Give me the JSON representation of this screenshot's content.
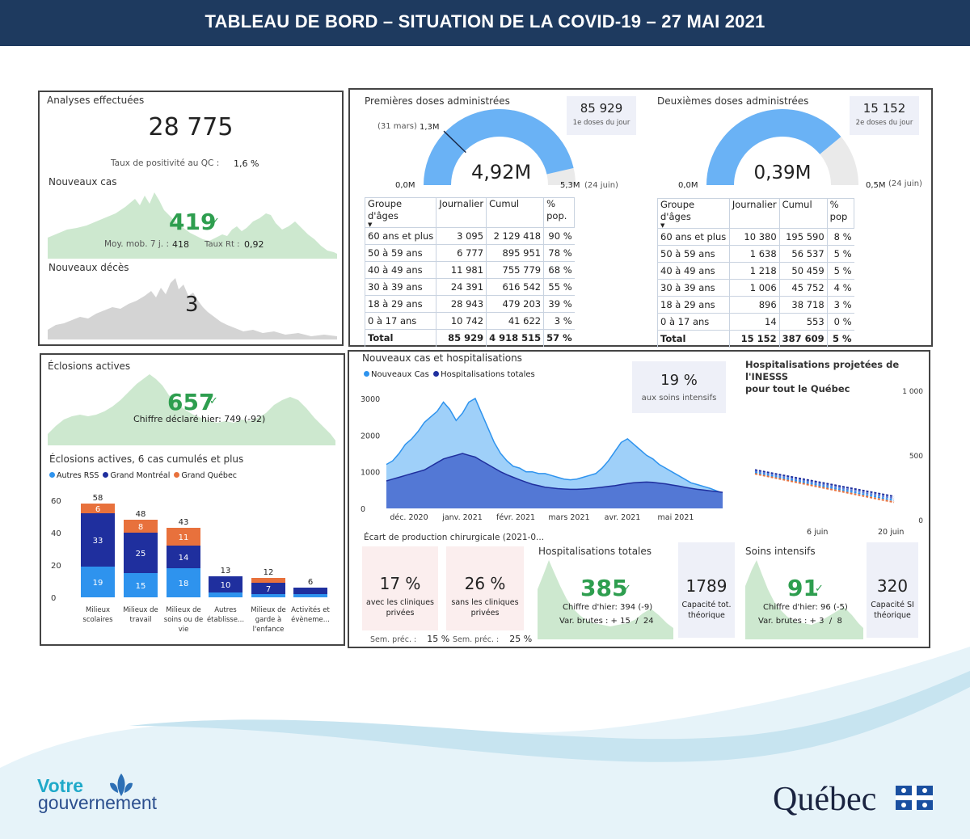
{
  "header": {
    "title": "TABLEAU DE BORD – SITUATION DE LA COVID-19 – 27 MAI 2021"
  },
  "colors": {
    "header_bg": "#1e3a5f",
    "green": "#2e9e4f",
    "light_green": "#cde8cf",
    "light_blue": "#6ab2f5",
    "dark_blue": "#1f2f9e",
    "orange": "#e8713c",
    "gray": "#cfcfcf"
  },
  "analyses": {
    "title": "Analyses effectuées",
    "value": "28 775",
    "positivity_label": "Taux de positivité au QC :",
    "positivity_value": "1,6 %"
  },
  "nouveaux_cas": {
    "title": "Nouveaux cas",
    "value": "419",
    "check": "✓",
    "moy_label": "Moy. mob. 7 j. :",
    "moy_value": "418",
    "rt_label": "Taux Rt :",
    "rt_value": "0,92"
  },
  "nouveaux_deces": {
    "title": "Nouveaux décès",
    "value": "3"
  },
  "premieres_doses": {
    "title": "Premières doses administrées",
    "value": "4,92M",
    "fill": 0.928,
    "min_label": "0,0M",
    "max_label": "5,3M",
    "max_note": "(24 juin)",
    "marker_label": "1,3M",
    "marker_note": "(31 mars)",
    "marker_fraction": 0.245,
    "kpi_value": "85 929",
    "kpi_label": "1e doses du jour",
    "table": {
      "headers": [
        "Groupe d'âges",
        "Journalier",
        "Cumul",
        "% pop."
      ],
      "rows": [
        [
          "60 ans et plus",
          "3 095",
          "2 129 418",
          "90 %"
        ],
        [
          "50 à 59 ans",
          "6 777",
          "895 951",
          "78 %"
        ],
        [
          "40 à 49 ans",
          "11 981",
          "755 779",
          "68 %"
        ],
        [
          "30 à 39 ans",
          "24 391",
          "616 542",
          "55 %"
        ],
        [
          "18 à 29 ans",
          "28 943",
          "479 203",
          "39 %"
        ],
        [
          "0 à 17 ans",
          "10 742",
          "41 622",
          "3 %"
        ]
      ],
      "total": [
        "Total",
        "85 929",
        "4 918 515",
        "57 %"
      ]
    }
  },
  "deuxiemes_doses": {
    "title": "Deuxièmes doses administrées",
    "value": "0,39M",
    "fill": 0.78,
    "min_label": "0,0M",
    "max_label": "0,5M",
    "max_note": "(24 juin)",
    "kpi_value": "15 152",
    "kpi_label": "2e doses du jour",
    "table": {
      "headers": [
        "Groupe d'âges",
        "Journalier",
        "Cumul",
        "% pop"
      ],
      "rows": [
        [
          "60 ans et plus",
          "10 380",
          "195 590",
          "8 %"
        ],
        [
          "50 à 59 ans",
          "1 638",
          "56 537",
          "5 %"
        ],
        [
          "40 à 49 ans",
          "1 218",
          "50 459",
          "5 %"
        ],
        [
          "30 à 39 ans",
          "1 006",
          "45 752",
          "4 %"
        ],
        [
          "18 à 29 ans",
          "896",
          "38 718",
          "3 %"
        ],
        [
          "0 à 17 ans",
          "14",
          "553",
          "0 %"
        ]
      ],
      "total": [
        "Total",
        "15 152",
        "387 609",
        "5 %"
      ]
    }
  },
  "eclosions": {
    "title": "Éclosions actives",
    "value": "657",
    "check": "✓",
    "note": "Chiffre déclaré hier: 749 (-92)"
  },
  "eclosions_chart": {
    "title": "Éclosions actives, 6 cas cumulés et plus",
    "legend": [
      "Autres RSS",
      "Grand Montréal",
      "Grand Québec"
    ],
    "chart_data": {
      "type": "bar",
      "stacked": true,
      "categories": [
        [
          "Milieux",
          "scolaires"
        ],
        [
          "Milieux de",
          "travail"
        ],
        [
          "Milieux de",
          "soins ou de",
          "vie"
        ],
        [
          "Autres",
          "établisse..."
        ],
        [
          "Milieux de",
          "garde à",
          "l'enfance"
        ],
        [
          "Activités et",
          "évèneme..."
        ]
      ],
      "series": [
        {
          "name": "Autres RSS",
          "values": [
            19,
            15,
            18,
            3,
            2,
            2
          ]
        },
        {
          "name": "Grand Montréal",
          "values": [
            33,
            25,
            14,
            10,
            7,
            4
          ]
        },
        {
          "name": "Grand Québec",
          "values": [
            6,
            8,
            11,
            0,
            3,
            0
          ]
        }
      ],
      "totals": [
        58,
        48,
        43,
        13,
        12,
        6
      ],
      "ylim": [
        0,
        60
      ],
      "yticks": [
        0,
        20,
        40,
        60
      ]
    }
  },
  "cas_hosp": {
    "title": "Nouveaux cas et hospitalisations",
    "legend": [
      "Nouveaux Cas",
      "Hospitalisations totales"
    ],
    "kpi_value": "19 %",
    "kpi_label": "aux soins intensifs",
    "chart_data": {
      "type": "area",
      "x_labels": [
        "déc. 2020",
        "janv. 2021",
        "févr. 2021",
        "mars 2021",
        "avr. 2021",
        "mai 2021"
      ],
      "yticks": [
        0,
        1000,
        2000,
        3000
      ],
      "ylim": [
        0,
        3000
      ],
      "series": [
        {
          "name": "Nouveaux Cas",
          "values": [
            1200,
            1300,
            1500,
            1750,
            1900,
            2100,
            2350,
            2500,
            2650,
            2900,
            2700,
            2400,
            2600,
            2900,
            3000,
            2600,
            2200,
            1800,
            1500,
            1300,
            1150,
            1100,
            1000,
            1000,
            950,
            950,
            900,
            850,
            800,
            780,
            800,
            850,
            900,
            950,
            1100,
            1300,
            1550,
            1800,
            1900,
            1750,
            1600,
            1450,
            1350,
            1200,
            1100,
            1000,
            900,
            800,
            700,
            650,
            600,
            550,
            480,
            420
          ]
        },
        {
          "name": "Hospitalisations totales",
          "values": [
            750,
            800,
            850,
            900,
            950,
            1000,
            1050,
            1150,
            1250,
            1350,
            1400,
            1450,
            1500,
            1450,
            1400,
            1300,
            1200,
            1100,
            1000,
            920,
            850,
            780,
            720,
            660,
            620,
            580,
            560,
            540,
            530,
            520,
            520,
            530,
            540,
            560,
            580,
            600,
            620,
            650,
            680,
            700,
            710,
            720,
            710,
            690,
            670,
            640,
            610,
            580,
            550,
            520,
            500,
            480,
            460,
            440
          ]
        }
      ]
    }
  },
  "inesss": {
    "title_line1": "Hospitalisations projetées de l'INESSS",
    "title_line2": "pour tout le Québec",
    "y_labels": [
      "1 000",
      "500",
      "0"
    ],
    "x_labels": [
      "6 juin",
      "20 juin"
    ],
    "chart_data": {
      "type": "line",
      "ylim": [
        0,
        1000
      ],
      "series": [
        {
          "name": "",
          "start": 385,
          "end": 180
        },
        {
          "name": "",
          "start": 375,
          "end": 165
        },
        {
          "name": "",
          "start": 365,
          "end": 150
        },
        {
          "name": "",
          "start": 355,
          "end": 135
        }
      ]
    }
  },
  "chirurgie": {
    "title": "Écart de production chirurgicale (2021-0...",
    "avec_value": "17 %",
    "avec_label_1": "avec les cliniques",
    "avec_label_2": "privées",
    "sans_value": "26 %",
    "sans_label_1": "sans les cliniques",
    "sans_label_2": "privées",
    "sem_label": "Sem. préc. :",
    "sem_avec": "15 %",
    "sem_sans": "25 %"
  },
  "hosp_totales": {
    "title": "Hospitalisations totales",
    "value": "385",
    "check": "✓",
    "hier": "Chiffre d'hier: 394 (-9)",
    "var": "Var. brutes : + 15  /  24",
    "cap_value": "1789",
    "cap_label_1": "Capacité tot.",
    "cap_label_2": "théorique"
  },
  "soins_intensifs": {
    "title": "Soins intensifs",
    "value": "91",
    "check": "✓",
    "hier": "Chiffre d'hier: 96 (-5)",
    "var": "Var. brutes : + 3  /  8",
    "cap_value": "320",
    "cap_label_1": "Capacité SI",
    "cap_label_2": "théorique"
  },
  "footer": {
    "votre": "Votre",
    "gouvernement": "gouvernement",
    "quebec": "Québec"
  }
}
